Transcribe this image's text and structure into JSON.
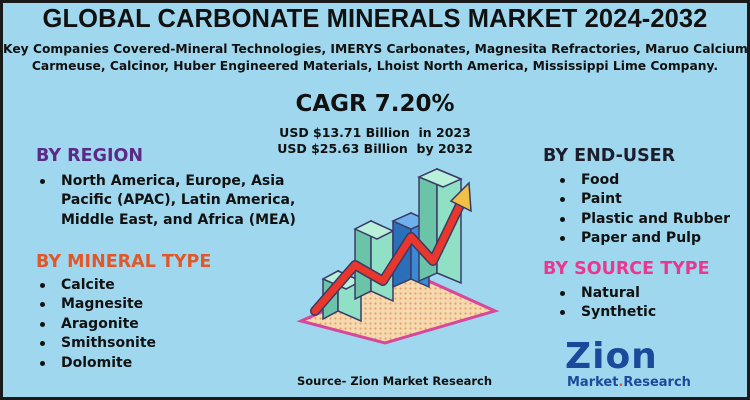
{
  "title": "GLOBAL CARBONATE MINERALS MARKET 2024-2032",
  "companies": {
    "line1": "Key Companies Covered-Mineral Technologies, IMERYS Carbonates, Magnesita Refractories, Maruo Calcium,",
    "line2": "Carmeuse, Calcinor, Huber Engineered Materials, Lhoist North America, Mississippi Lime Company."
  },
  "cagr": "CAGR 7.20%",
  "usd_2023": "USD $13.71 Billion  in 2023",
  "usd_2032": "USD $25.63 Billion  by 2032",
  "by_region": {
    "heading": "BY REGION",
    "items": [
      "North America, Europe, Asia",
      "Pacific (APAC), Latin America,",
      "Middle East, and Africa (MEA)"
    ]
  },
  "by_mineral_type": {
    "heading": "BY MINERAL TYPE",
    "items": [
      "Calcite",
      "Magnesite",
      "Aragonite",
      "Smithsonite",
      "Dolomite"
    ]
  },
  "by_end_user": {
    "heading": "BY END-USER",
    "items": [
      "Food",
      "Paint",
      "Plastic and Rubber",
      "Paper and Pulp"
    ]
  },
  "by_source_type": {
    "heading": "BY SOURCE TYPE",
    "items": [
      "Natural",
      "Synthetic"
    ]
  },
  "source": "Source- Zion Market Research",
  "logo": {
    "top": "Zion",
    "bottom_left": "Market",
    "bottom_right": "Research"
  },
  "colors": {
    "background": "#9fd8ee",
    "heading_purple": "#5c2a86",
    "heading_orange": "#e0582a",
    "heading_pink": "#e8388f",
    "bar_teal": "#8fe0c4",
    "bar_blue": "#3a8ad8",
    "arrow": "#e8382e",
    "logo_blue": "#1c4a9a"
  }
}
